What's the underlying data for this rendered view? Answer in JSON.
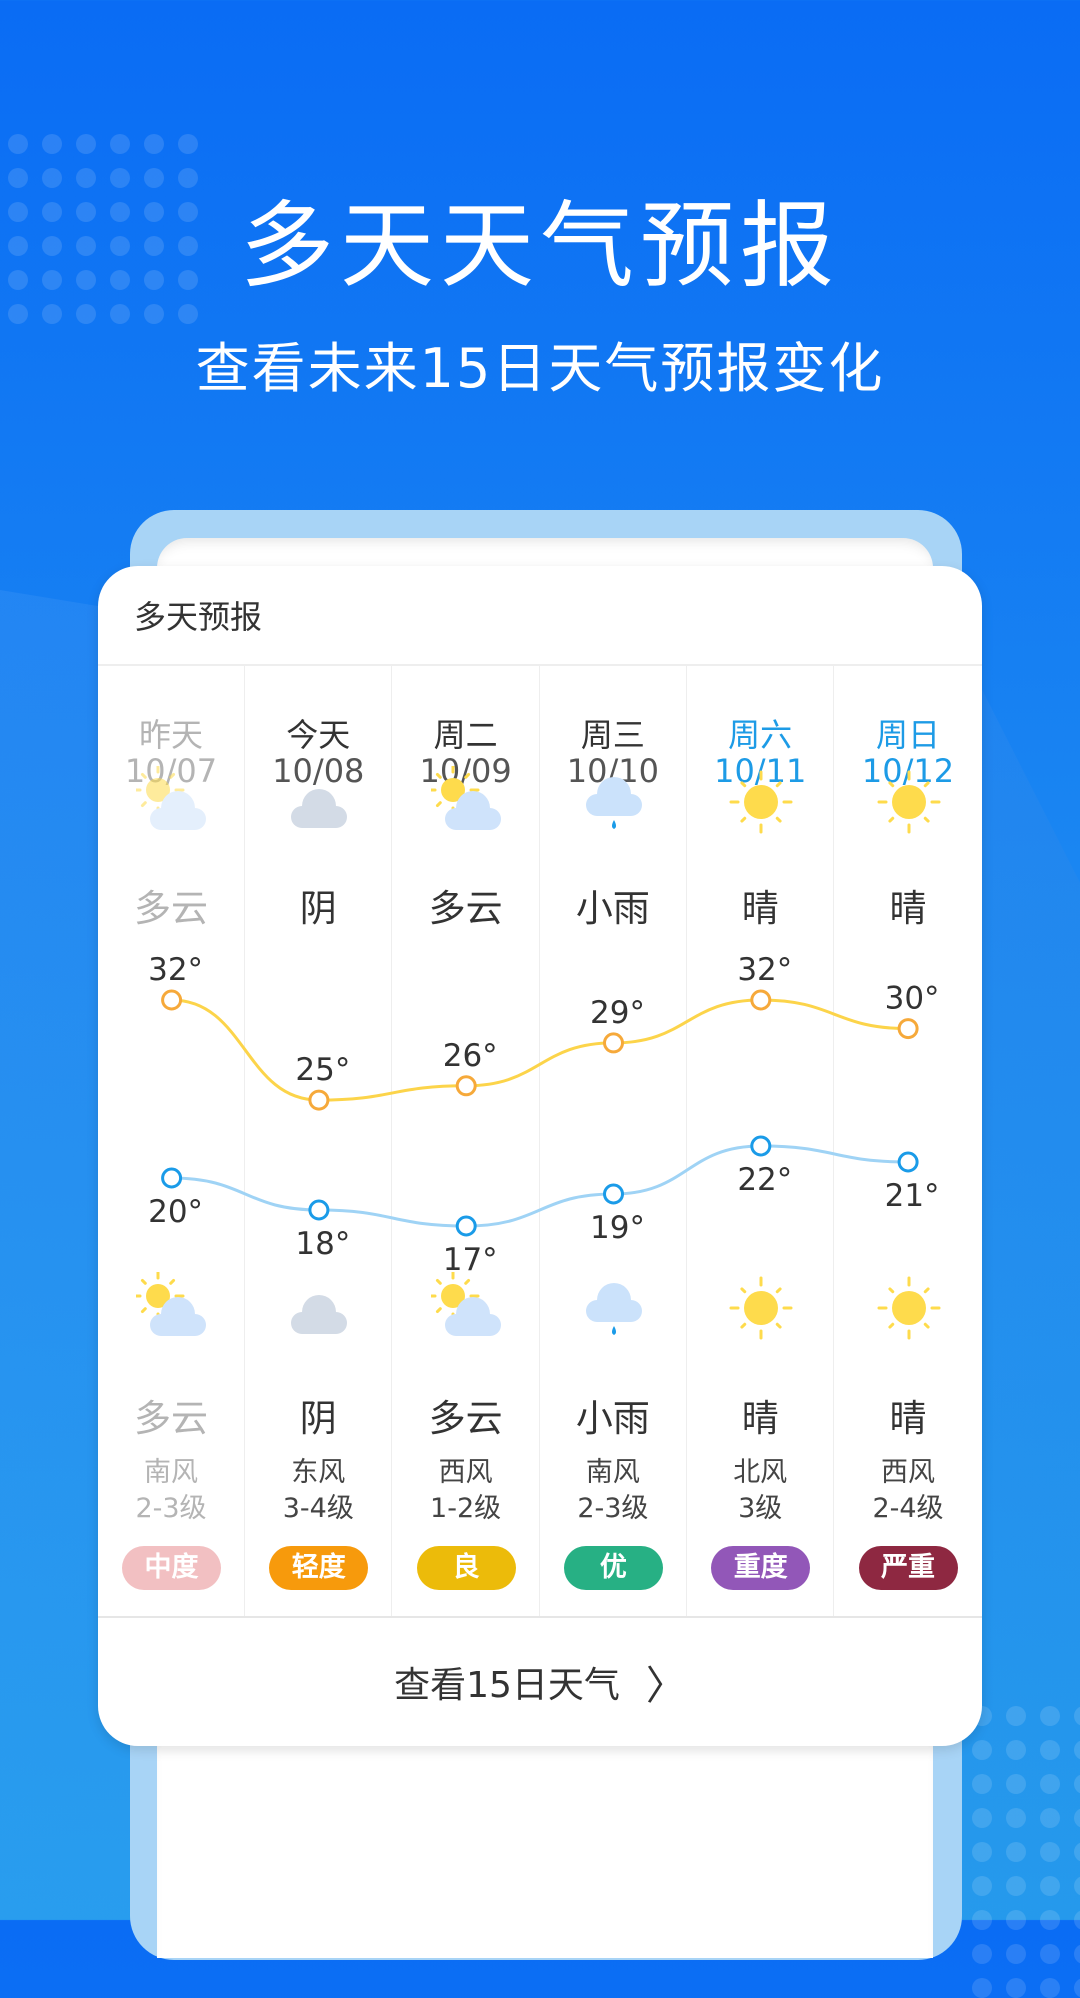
{
  "headline": "多天天气预报",
  "subheadline": "查看未来15日天气预报变化",
  "card": {
    "title": "多天预报",
    "footer_label": "查看15日天气",
    "footer_icon": "chevron-right-icon"
  },
  "colors": {
    "high_line": "#fcd44a",
    "high_point": "#f6a93a",
    "low_line": "#9fd3f5",
    "low_point": "#1a9be8",
    "weekend": "#1d9be6",
    "past": "#b4b4b4"
  },
  "days": [
    {
      "day": "昨天",
      "date": "10/07",
      "day_icon": "partly-cloudy-icon",
      "day_cond": "多云",
      "high": "32°",
      "high_v": 32,
      "low": "20°",
      "low_v": 20,
      "night_icon": "partly-cloudy-icon",
      "night_cond": "多云",
      "wind": "南风",
      "level": "2-3级",
      "aqi": "中度",
      "aqi_color": "#f2c0c2",
      "style": "past"
    },
    {
      "day": "今天",
      "date": "10/08",
      "day_icon": "overcast-icon",
      "day_cond": "阴",
      "high": "25°",
      "high_v": 25,
      "low": "18°",
      "low_v": 18,
      "night_icon": "overcast-icon",
      "night_cond": "阴",
      "wind": "东风",
      "level": "3-4级",
      "aqi": "轻度",
      "aqi_color": "#f79a0c",
      "style": "normal"
    },
    {
      "day": "周二",
      "date": "10/09",
      "day_icon": "partly-cloudy-icon",
      "day_cond": "多云",
      "high": "26°",
      "high_v": 26,
      "low": "17°",
      "low_v": 17,
      "night_icon": "partly-cloudy-icon",
      "night_cond": "多云",
      "wind": "西风",
      "level": "1-2级",
      "aqi": "良",
      "aqi_color": "#ecbb0a",
      "style": "normal"
    },
    {
      "day": "周三",
      "date": "10/10",
      "day_icon": "light-rain-icon",
      "day_cond": "小雨",
      "high": "29°",
      "high_v": 29,
      "low": "19°",
      "low_v": 19,
      "night_icon": "light-rain-icon",
      "night_cond": "小雨",
      "wind": "南风",
      "level": "2-3级",
      "aqi": "优",
      "aqi_color": "#27b084",
      "style": "normal"
    },
    {
      "day": "周六",
      "date": "10/11",
      "day_icon": "sunny-icon",
      "day_cond": "晴",
      "high": "32°",
      "high_v": 32,
      "low": "22°",
      "low_v": 22,
      "night_icon": "sunny-icon",
      "night_cond": "晴",
      "wind": "北风",
      "level": "3级",
      "aqi": "重度",
      "aqi_color": "#9257b8",
      "style": "weekend"
    },
    {
      "day": "周日",
      "date": "10/12",
      "day_icon": "sunny-icon",
      "day_cond": "晴",
      "high": "30°",
      "high_v": 30,
      "low": "21°",
      "low_v": 21,
      "night_icon": "sunny-icon",
      "night_cond": "晴",
      "wind": "西风",
      "level": "2-4级",
      "aqi": "严重",
      "aqi_color": "#8e2841",
      "style": "weekend"
    }
  ]
}
